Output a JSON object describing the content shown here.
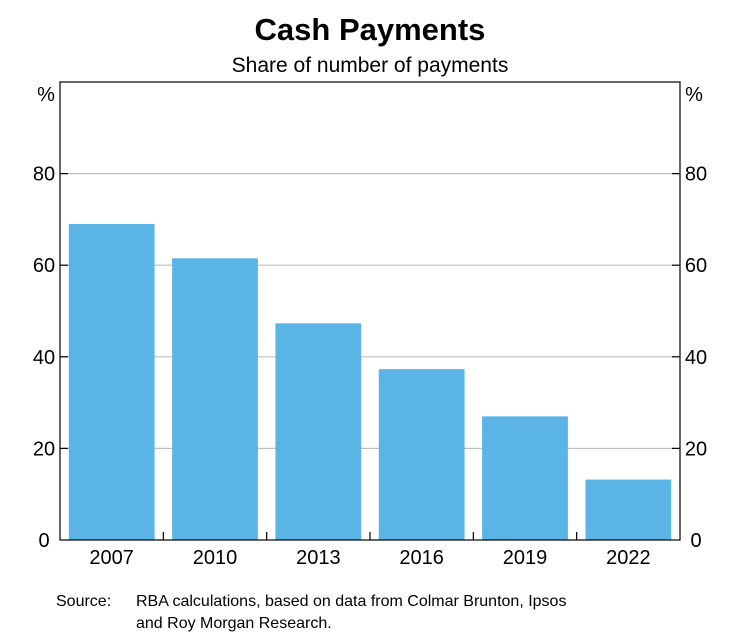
{
  "chart_data": {
    "type": "bar",
    "title": "Cash Payments",
    "subtitle": "Share of number of payments",
    "y_unit_left": "%",
    "y_unit_right": "%",
    "categories": [
      "2007",
      "2010",
      "2013",
      "2016",
      "2019",
      "2022"
    ],
    "values": [
      69,
      61.5,
      47.3,
      37.3,
      27,
      13.2
    ],
    "ylim": [
      0,
      100
    ],
    "yticks": [
      0,
      20,
      40,
      60,
      80
    ],
    "ytick_labels": [
      "0",
      "20",
      "40",
      "60",
      "80"
    ],
    "grid": true,
    "bar_color": "#5ab4e5",
    "gridline_color": "#bfbfbf",
    "source_label": "Source:",
    "source_lines": [
      "RBA calculations, based on data from Colmar Brunton, Ipsos",
      "and Roy Morgan Research."
    ]
  }
}
